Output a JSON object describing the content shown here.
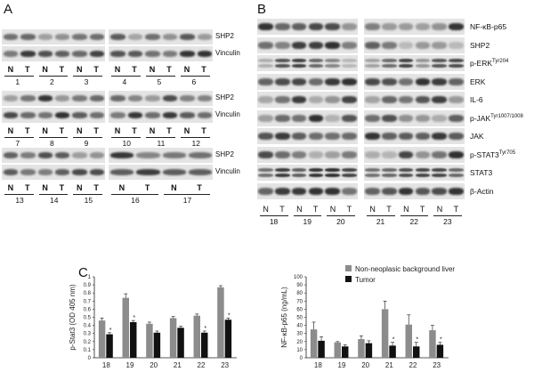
{
  "panels": {
    "a": "A",
    "b": "B",
    "c": "C"
  },
  "panelA": {
    "marker_top": "SHP2",
    "marker_bottom": "Vinculin",
    "lane_N": "N",
    "lane_T": "T",
    "rows": [
      {
        "numbers": [
          "1",
          "2",
          "3",
          "4",
          "5",
          "6"
        ]
      },
      {
        "numbers": [
          "7",
          "8",
          "9",
          "10",
          "11",
          "12"
        ]
      },
      {
        "numbers": [
          "13",
          "14",
          "15",
          "16",
          "17"
        ]
      }
    ]
  },
  "panelB": {
    "markers": [
      "NF-κB-p65",
      "SHP2",
      "p-ERK",
      "ERK",
      "IL-6",
      "p-JAK",
      "JAK",
      "p-STAT3",
      "STAT3",
      "β-Actin"
    ],
    "marker_sup": {
      "p-ERK": "Tyr204",
      "p-JAK": "Tyr1007/1008",
      "p-STAT3": "Tyr705"
    },
    "lane_N": "N",
    "lane_T": "T",
    "numbers": [
      "18",
      "19",
      "20",
      "21",
      "22",
      "23"
    ]
  },
  "legend": {
    "series1": "Non-neoplasic background liver",
    "series2": "Tumor"
  },
  "colors": {
    "non_neoplastic": "#8c8c8c",
    "tumor": "#111111"
  },
  "chart_data": [
    {
      "type": "bar",
      "categories": [
        "18",
        "19",
        "20",
        "21",
        "22",
        "23"
      ],
      "series": [
        {
          "name": "Non-neoplasic background liver",
          "values": [
            0.46,
            0.74,
            0.42,
            0.49,
            0.52,
            0.87
          ],
          "errors": [
            0.03,
            0.05,
            0.02,
            0.02,
            0.02,
            0.02
          ]
        },
        {
          "name": "Tumor",
          "values": [
            0.29,
            0.44,
            0.31,
            0.37,
            0.31,
            0.47
          ],
          "errors": [
            0.02,
            0.02,
            0.02,
            0.02,
            0.02,
            0.02
          ]
        }
      ],
      "ylabel": "p-Stat3 (OD 405 nm)",
      "ylim": [
        0,
        1
      ],
      "yticks": [
        "0",
        "0.1",
        "0.2",
        "0.3",
        "0.4",
        "0.5",
        "0.6",
        "0.7",
        "0.8",
        "0.9",
        "1"
      ],
      "significance": [
        "*",
        "*",
        "",
        "",
        "*",
        "*"
      ]
    },
    {
      "type": "bar",
      "categories": [
        "18",
        "19",
        "20",
        "21",
        "22",
        "23"
      ],
      "series": [
        {
          "name": "Non-neoplasic background liver",
          "values": [
            35,
            19,
            23,
            60,
            41,
            34
          ],
          "errors": [
            9,
            1,
            4,
            10,
            12,
            6
          ]
        },
        {
          "name": "Tumor",
          "values": [
            21,
            14,
            18,
            15,
            14,
            16
          ],
          "errors": [
            5,
            2,
            3,
            4,
            5,
            3
          ]
        }
      ],
      "ylabel": "NF-κB-p65 (ng/mL)",
      "ylim": [
        0,
        100
      ],
      "yticks": [
        "0",
        "10",
        "20",
        "30",
        "40",
        "50",
        "60",
        "70",
        "80",
        "90",
        "100"
      ],
      "significance": [
        "",
        "",
        "",
        "*",
        "*",
        "*"
      ]
    }
  ]
}
